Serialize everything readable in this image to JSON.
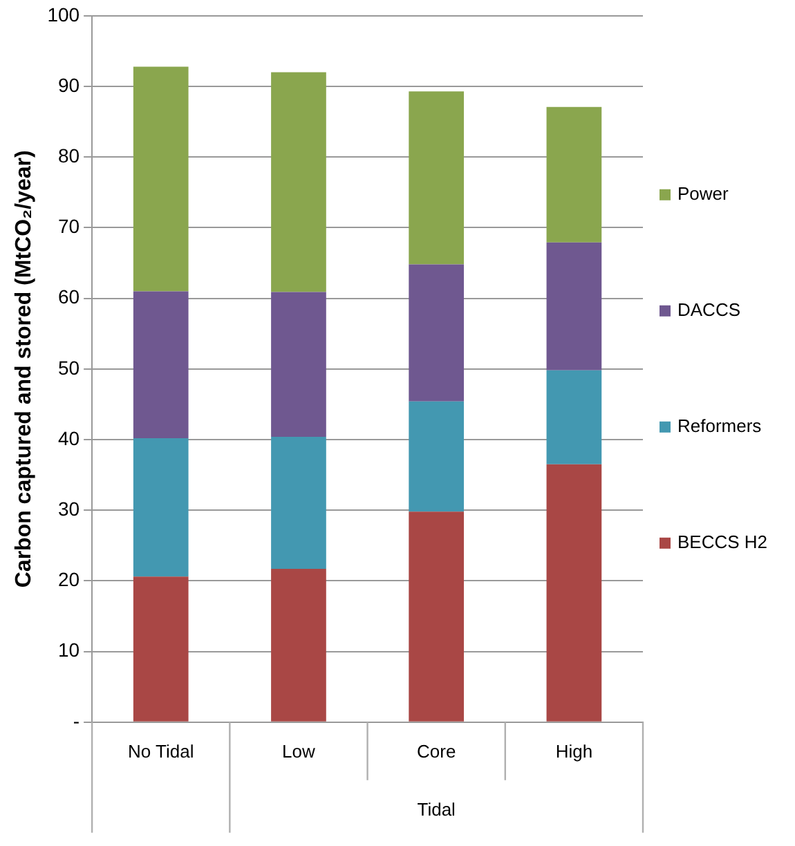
{
  "chart_data": {
    "type": "bar",
    "stacked": true,
    "ylabel": "Carbon captured and stored (MtCO₂/year)",
    "categories": [
      "No Tidal",
      "Low",
      "Core",
      "High"
    ],
    "series": [
      {
        "name": "BECCS H2",
        "color": "#a94745",
        "values": [
          20.6,
          21.7,
          29.8,
          36.5
        ]
      },
      {
        "name": "Reformers",
        "color": "#4398b1",
        "values": [
          19.6,
          18.7,
          15.6,
          13.3
        ]
      },
      {
        "name": "DACCS",
        "color": "#6f5890",
        "values": [
          20.8,
          20.5,
          19.4,
          18.1
        ]
      },
      {
        "name": "Power",
        "color": "#8aa64e",
        "values": [
          31.8,
          31.1,
          24.5,
          19.2
        ]
      }
    ],
    "ylim": [
      0,
      100
    ],
    "yticks": [
      {
        "value": 0,
        "label": "-"
      },
      10,
      20,
      30,
      40,
      50,
      60,
      70,
      80,
      90,
      100
    ],
    "grid": "y",
    "legend": "right",
    "annotations": [
      "Tidal"
    ]
  }
}
